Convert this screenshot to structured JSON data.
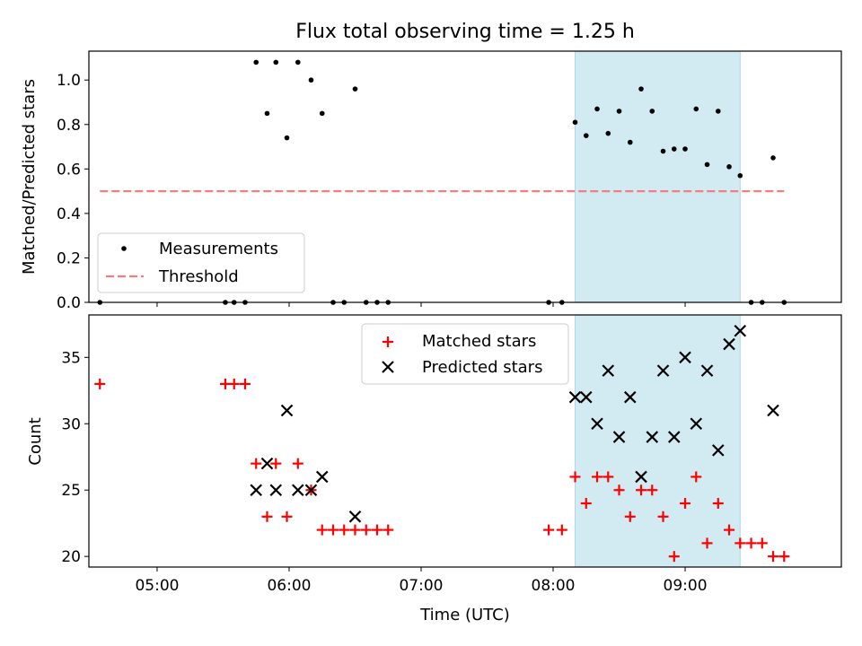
{
  "figure": {
    "title": "Flux total observing time = 1.25 h",
    "colors": {
      "measurement": "#000000",
      "threshold": "#f08080",
      "matched": "#ff0000",
      "predicted": "#000000",
      "shade": "#add8e6"
    }
  },
  "chart_data": [
    {
      "type": "scatter",
      "ylabel": "Matched/Predicted stars",
      "xlabel": "",
      "ylim": [
        0,
        1.13
      ],
      "yticks": [
        "0.0",
        "0.2",
        "0.4",
        "0.6",
        "0.8",
        "1.0"
      ],
      "xlim": [
        "04:29",
        "10:11"
      ],
      "grid": false,
      "legend_position": "lower-left",
      "shaded_interval": [
        "08:10",
        "09:25"
      ],
      "series": [
        {
          "name": "Measurements",
          "marker": "dot",
          "points": [
            [
              "04:34",
              0.0
            ],
            [
              "05:31",
              0.0
            ],
            [
              "05:35",
              0.0
            ],
            [
              "05:40",
              0.0
            ],
            [
              "05:45",
              1.08
            ],
            [
              "05:50",
              0.85
            ],
            [
              "05:54",
              1.08
            ],
            [
              "05:59",
              0.74
            ],
            [
              "06:04",
              1.08
            ],
            [
              "06:10",
              1.0
            ],
            [
              "06:15",
              0.85
            ],
            [
              "06:20",
              0.0
            ],
            [
              "06:25",
              0.0
            ],
            [
              "06:30",
              0.96
            ],
            [
              "06:35",
              0.0
            ],
            [
              "06:40",
              0.0
            ],
            [
              "06:45",
              0.0
            ],
            [
              "07:58",
              0.0
            ],
            [
              "08:04",
              0.0
            ],
            [
              "08:10",
              0.81
            ],
            [
              "08:15",
              0.75
            ],
            [
              "08:20",
              0.87
            ],
            [
              "08:25",
              0.76
            ],
            [
              "08:30",
              0.86
            ],
            [
              "08:35",
              0.72
            ],
            [
              "08:40",
              0.96
            ],
            [
              "08:45",
              0.86
            ],
            [
              "08:50",
              0.68
            ],
            [
              "08:55",
              0.69
            ],
            [
              "09:00",
              0.69
            ],
            [
              "09:05",
              0.87
            ],
            [
              "09:10",
              0.62
            ],
            [
              "09:15",
              0.86
            ],
            [
              "09:20",
              0.61
            ],
            [
              "09:25",
              0.57
            ],
            [
              "09:30",
              0.0
            ],
            [
              "09:35",
              0.0
            ],
            [
              "09:40",
              0.65
            ],
            [
              "09:45",
              0.0
            ]
          ]
        },
        {
          "name": "Threshold",
          "marker": "dashed-line",
          "points": [
            [
              "04:34",
              0.5
            ],
            [
              "09:45",
              0.5
            ]
          ]
        }
      ]
    },
    {
      "type": "scatter",
      "ylabel": "Count",
      "xlabel": "Time (UTC)",
      "ylim": [
        19.2,
        38.2
      ],
      "yticks": [
        "20",
        "25",
        "30",
        "35"
      ],
      "xlim": [
        "04:29",
        "10:11"
      ],
      "xticks": [
        "05:00",
        "06:00",
        "07:00",
        "08:00",
        "09:00"
      ],
      "grid": false,
      "legend_position": "upper-center",
      "shaded_interval": [
        "08:10",
        "09:25"
      ],
      "series": [
        {
          "name": "Matched stars",
          "marker": "plus",
          "points": [
            [
              "04:34",
              33
            ],
            [
              "05:31",
              33
            ],
            [
              "05:35",
              33
            ],
            [
              "05:40",
              33
            ],
            [
              "05:45",
              27
            ],
            [
              "05:50",
              23
            ],
            [
              "05:54",
              27
            ],
            [
              "05:59",
              23
            ],
            [
              "06:04",
              27
            ],
            [
              "06:10",
              25
            ],
            [
              "06:15",
              22
            ],
            [
              "06:20",
              22
            ],
            [
              "06:25",
              22
            ],
            [
              "06:30",
              22
            ],
            [
              "06:35",
              22
            ],
            [
              "06:40",
              22
            ],
            [
              "06:45",
              22
            ],
            [
              "07:58",
              22
            ],
            [
              "08:04",
              22
            ],
            [
              "08:10",
              26
            ],
            [
              "08:15",
              24
            ],
            [
              "08:20",
              26
            ],
            [
              "08:25",
              26
            ],
            [
              "08:30",
              25
            ],
            [
              "08:35",
              23
            ],
            [
              "08:40",
              25
            ],
            [
              "08:45",
              25
            ],
            [
              "08:50",
              23
            ],
            [
              "08:55",
              20
            ],
            [
              "09:00",
              24
            ],
            [
              "09:05",
              26
            ],
            [
              "09:10",
              21
            ],
            [
              "09:15",
              24
            ],
            [
              "09:20",
              22
            ],
            [
              "09:25",
              21
            ],
            [
              "09:30",
              21
            ],
            [
              "09:35",
              21
            ],
            [
              "09:40",
              20
            ],
            [
              "09:45",
              20
            ]
          ]
        },
        {
          "name": "Predicted stars",
          "marker": "x",
          "points": [
            [
              "05:45",
              25
            ],
            [
              "05:50",
              27
            ],
            [
              "05:54",
              25
            ],
            [
              "05:59",
              31
            ],
            [
              "06:04",
              25
            ],
            [
              "06:10",
              25
            ],
            [
              "06:15",
              26
            ],
            [
              "06:30",
              23
            ],
            [
              "08:10",
              32
            ],
            [
              "08:15",
              32
            ],
            [
              "08:20",
              30
            ],
            [
              "08:25",
              34
            ],
            [
              "08:30",
              29
            ],
            [
              "08:35",
              32
            ],
            [
              "08:40",
              26
            ],
            [
              "08:45",
              29
            ],
            [
              "08:50",
              34
            ],
            [
              "08:55",
              29
            ],
            [
              "09:00",
              35
            ],
            [
              "09:05",
              30
            ],
            [
              "09:10",
              34
            ],
            [
              "09:15",
              28
            ],
            [
              "09:20",
              36
            ],
            [
              "09:25",
              37
            ],
            [
              "09:40",
              31
            ]
          ]
        }
      ]
    }
  ]
}
